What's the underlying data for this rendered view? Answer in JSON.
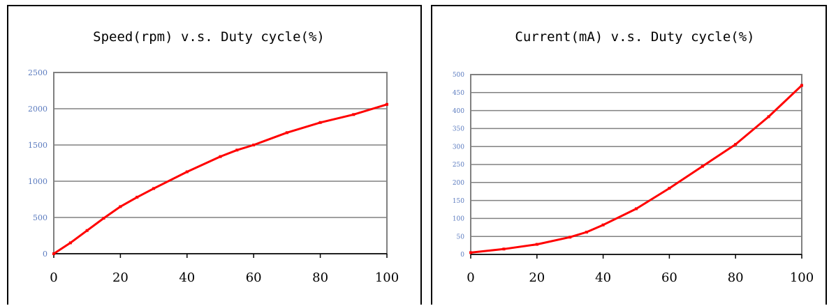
{
  "chart_data": [
    {
      "type": "line",
      "title": "Speed(rpm)  v.s.   Duty cycle(%)",
      "xlabel": "",
      "ylabel": "",
      "x_ticks": [
        "0",
        "20",
        "40",
        "60",
        "80",
        "100"
      ],
      "y_ticks": [
        "0",
        "500",
        "1000",
        "1500",
        "2000",
        "2500"
      ],
      "xlim": [
        0,
        100
      ],
      "ylim": [
        0,
        2500
      ],
      "grid": "horizontal",
      "line_color": "#ff0000",
      "series": [
        {
          "x": [
            0,
            5,
            10,
            15,
            20,
            25,
            30,
            40,
            50,
            55,
            60,
            70,
            80,
            90,
            100
          ],
          "values": [
            0,
            150,
            320,
            490,
            650,
            780,
            900,
            1130,
            1340,
            1430,
            1500,
            1670,
            1810,
            1920,
            2060
          ]
        }
      ]
    },
    {
      "type": "line",
      "title": "Current(mA)  v.s.   Duty cycle(%)",
      "xlabel": "",
      "ylabel": "",
      "x_ticks": [
        "0",
        "20",
        "40",
        "60",
        "80",
        "100"
      ],
      "y_ticks": [
        "0",
        "50",
        "100",
        "150",
        "200",
        "250",
        "300",
        "350",
        "400",
        "450",
        "500"
      ],
      "xlim": [
        0,
        100
      ],
      "ylim": [
        0,
        500
      ],
      "grid": "horizontal",
      "line_color": "#ff0000",
      "series": [
        {
          "x": [
            0,
            10,
            20,
            30,
            35,
            40,
            50,
            60,
            70,
            80,
            90,
            100
          ],
          "values": [
            5,
            15,
            28,
            48,
            62,
            82,
            127,
            184,
            245,
            306,
            383,
            470
          ]
        }
      ]
    }
  ]
}
